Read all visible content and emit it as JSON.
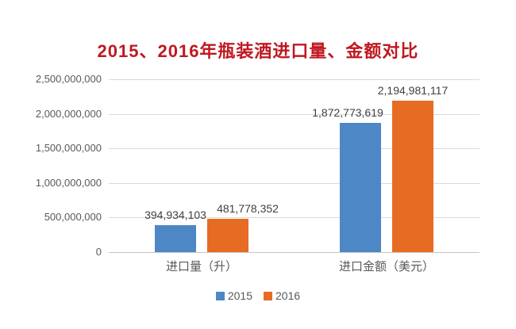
{
  "page": {
    "background": "#ffffff"
  },
  "chart_data": {
    "type": "bar",
    "title": "2015、2016年瓶装酒进口量、金额对比",
    "title_color": "#C01820",
    "categories": [
      "进口量（升）",
      "进口金额（美元）"
    ],
    "series": [
      {
        "name": "2015",
        "color": "#4E87C5",
        "values": [
          394934103,
          1872773619
        ],
        "labels": [
          "394,934,103",
          "1,872,773,619"
        ]
      },
      {
        "name": "2016",
        "color": "#E66C24",
        "values": [
          481778352,
          2194981117
        ],
        "labels": [
          "481,778,352",
          "2,194,981,117"
        ]
      }
    ],
    "y_ticks": [
      {
        "value": 2500000000,
        "label": "2,500,000,000"
      },
      {
        "value": 2000000000,
        "label": "2,000,000,000"
      },
      {
        "value": 1500000000,
        "label": "1,500,000,000"
      },
      {
        "value": 1000000000,
        "label": "1,000,000,000"
      },
      {
        "value": 500000000,
        "label": "500,000,000"
      },
      {
        "value": 0,
        "label": "0"
      }
    ],
    "ylim": [
      0,
      2500000000
    ],
    "grid": true,
    "legend_position": "bottom",
    "colors": {
      "gridline": "#D9D9D9",
      "axis_line": "#C6C6C6",
      "tick_text": "#595959",
      "data_label_text": "#404040",
      "category_text": "#595959",
      "legend_text": "#595959"
    }
  }
}
